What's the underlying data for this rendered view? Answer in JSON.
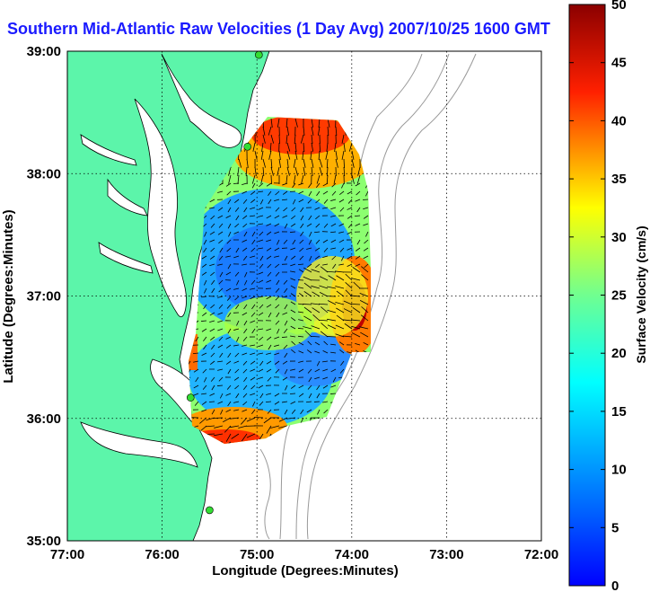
{
  "chart_data": {
    "type": "heatmap",
    "title": "Southern Mid-Atlantic Raw Velocities (1 Day Avg) 2007/10/25 1600 GMT",
    "xlabel": "Longitude (Degrees:Minutes)",
    "ylabel": "Latitude (Degrees:Minutes)",
    "x_ticks": [
      "77:00",
      "76:00",
      "75:00",
      "74:00",
      "73:00",
      "72:00"
    ],
    "y_ticks": [
      "39:00",
      "38:00",
      "37:00",
      "36:00",
      "35:00"
    ],
    "xlim": [
      -77,
      -72
    ],
    "ylim": [
      35,
      39
    ],
    "grid": true,
    "colorbar": {
      "label": "Surface Velocity (cm/s)",
      "range": [
        0,
        50
      ],
      "ticks": [
        "50",
        "45",
        "40",
        "35",
        "30",
        "25",
        "20",
        "15",
        "10",
        "5",
        "0"
      ],
      "colormap": "jet"
    },
    "colors": {
      "land": "#5cf5aa",
      "water": "#ffffff",
      "title": "#1a1aff",
      "arrows": "#000000",
      "station": "#33dd33"
    },
    "stations": [
      {
        "lon": -74.98,
        "lat": 38.97
      },
      {
        "lon": -75.1,
        "lat": 38.22
      },
      {
        "lon": -75.7,
        "lat": 36.17
      },
      {
        "lon": -75.5,
        "lat": 35.25
      }
    ]
  }
}
